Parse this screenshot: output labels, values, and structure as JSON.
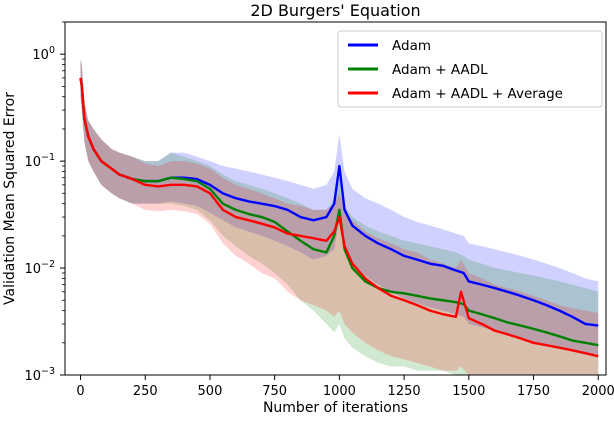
{
  "chart_data": {
    "type": "line",
    "title": "2D Burgers' Equation",
    "xlabel": "Number of iterations",
    "ylabel": "Validation Mean Squared Error",
    "xlim": [
      -60,
      2030
    ],
    "ylim": [
      0.001,
      2.0
    ],
    "yscale": "log",
    "xticks": [
      0,
      250,
      500,
      750,
      1000,
      1250,
      1500,
      1750,
      2000
    ],
    "xtick_labels": [
      "0",
      "250",
      "500",
      "750",
      "1000",
      "1250",
      "1500",
      "1750",
      "2000"
    ],
    "yticks": [
      1,
      0.1,
      0.01,
      0.001
    ],
    "ytick_base": "10",
    "ytick_exponents": [
      "0",
      "−1",
      "−2",
      "−3"
    ],
    "legend_position": "top-right",
    "series": [
      {
        "name": "Adam",
        "color": "#0000ff",
        "x": [
          0,
          5,
          15,
          30,
          50,
          80,
          120,
          150,
          200,
          250,
          300,
          350,
          400,
          450,
          500,
          550,
          600,
          650,
          700,
          750,
          800,
          850,
          900,
          950,
          980,
          1000,
          1020,
          1050,
          1100,
          1150,
          1200,
          1250,
          1300,
          1350,
          1400,
          1450,
          1480,
          1500,
          1550,
          1600,
          1650,
          1700,
          1750,
          1800,
          1850,
          1900,
          1950,
          2000
        ],
        "y": [
          0.6,
          0.5,
          0.25,
          0.17,
          0.13,
          0.1,
          0.085,
          0.075,
          0.068,
          0.065,
          0.065,
          0.07,
          0.07,
          0.068,
          0.06,
          0.05,
          0.045,
          0.042,
          0.04,
          0.038,
          0.035,
          0.03,
          0.028,
          0.03,
          0.04,
          0.09,
          0.035,
          0.025,
          0.02,
          0.017,
          0.015,
          0.013,
          0.012,
          0.011,
          0.0105,
          0.0095,
          0.009,
          0.0075,
          0.007,
          0.0065,
          0.006,
          0.0055,
          0.005,
          0.0045,
          0.004,
          0.0035,
          0.003,
          0.0029
        ],
        "band_lower": [
          0.4,
          0.3,
          0.15,
          0.1,
          0.08,
          0.06,
          0.05,
          0.045,
          0.04,
          0.04,
          0.04,
          0.042,
          0.04,
          0.038,
          0.033,
          0.028,
          0.024,
          0.022,
          0.02,
          0.018,
          0.016,
          0.014,
          0.012,
          0.013,
          0.015,
          0.028,
          0.016,
          0.011,
          0.0085,
          0.007,
          0.006,
          0.0052,
          0.0047,
          0.0043,
          0.004,
          0.0037,
          0.0035,
          0.003,
          0.0028,
          0.0026,
          0.0024,
          0.0022,
          0.002,
          0.0019,
          0.0018,
          0.0017,
          0.0016,
          0.0015
        ],
        "band_upper": [
          0.9,
          0.8,
          0.35,
          0.24,
          0.2,
          0.16,
          0.13,
          0.12,
          0.11,
          0.1,
          0.1,
          0.12,
          0.12,
          0.11,
          0.1,
          0.09,
          0.085,
          0.08,
          0.075,
          0.07,
          0.065,
          0.06,
          0.055,
          0.06,
          0.08,
          0.18,
          0.08,
          0.055,
          0.045,
          0.04,
          0.035,
          0.03,
          0.027,
          0.025,
          0.023,
          0.021,
          0.02,
          0.017,
          0.016,
          0.015,
          0.014,
          0.013,
          0.012,
          0.011,
          0.01,
          0.009,
          0.008,
          0.0075
        ]
      },
      {
        "name": "Adam + AADL",
        "color": "#008000",
        "x": [
          0,
          5,
          15,
          30,
          50,
          80,
          120,
          150,
          200,
          250,
          300,
          350,
          400,
          450,
          500,
          550,
          600,
          650,
          700,
          750,
          800,
          850,
          900,
          950,
          980,
          1000,
          1020,
          1050,
          1100,
          1150,
          1200,
          1250,
          1300,
          1350,
          1400,
          1450,
          1480,
          1500,
          1550,
          1600,
          1650,
          1700,
          1750,
          1800,
          1850,
          1900,
          1950,
          2000
        ],
        "y": [
          0.6,
          0.5,
          0.25,
          0.17,
          0.13,
          0.1,
          0.085,
          0.075,
          0.068,
          0.065,
          0.065,
          0.07,
          0.068,
          0.065,
          0.055,
          0.04,
          0.035,
          0.032,
          0.03,
          0.027,
          0.022,
          0.018,
          0.015,
          0.014,
          0.02,
          0.035,
          0.015,
          0.01,
          0.0075,
          0.0065,
          0.006,
          0.0058,
          0.0055,
          0.0052,
          0.005,
          0.0048,
          0.0046,
          0.004,
          0.0037,
          0.0034,
          0.0031,
          0.0029,
          0.0027,
          0.0025,
          0.0023,
          0.0021,
          0.002,
          0.0019
        ],
        "band_lower": [
          0.4,
          0.3,
          0.15,
          0.1,
          0.08,
          0.06,
          0.05,
          0.045,
          0.04,
          0.04,
          0.04,
          0.04,
          0.038,
          0.035,
          0.028,
          0.02,
          0.016,
          0.013,
          0.011,
          0.009,
          0.007,
          0.005,
          0.004,
          0.003,
          0.0025,
          0.003,
          0.0022,
          0.0018,
          0.0015,
          0.0013,
          0.0012,
          0.0012,
          0.0011,
          0.0011,
          0.0011,
          0.001,
          0.001,
          0.001,
          0.001,
          0.001,
          0.001,
          0.001,
          0.001,
          0.001,
          0.001,
          0.001,
          0.001,
          0.001
        ],
        "band_upper": [
          0.9,
          0.8,
          0.35,
          0.24,
          0.2,
          0.16,
          0.13,
          0.12,
          0.11,
          0.1,
          0.1,
          0.12,
          0.11,
          0.1,
          0.09,
          0.075,
          0.065,
          0.06,
          0.055,
          0.05,
          0.045,
          0.04,
          0.035,
          0.035,
          0.045,
          0.07,
          0.038,
          0.03,
          0.025,
          0.022,
          0.02,
          0.018,
          0.017,
          0.016,
          0.015,
          0.014,
          0.013,
          0.012,
          0.011,
          0.01,
          0.0095,
          0.009,
          0.0085,
          0.008,
          0.0075,
          0.007,
          0.0065,
          0.006
        ]
      },
      {
        "name": "Adam + AADL + Average",
        "color": "#ff0000",
        "x": [
          0,
          5,
          15,
          30,
          50,
          80,
          120,
          150,
          200,
          250,
          300,
          350,
          400,
          450,
          500,
          550,
          600,
          650,
          700,
          750,
          800,
          850,
          900,
          950,
          980,
          1000,
          1020,
          1050,
          1100,
          1150,
          1200,
          1250,
          1300,
          1350,
          1400,
          1450,
          1470,
          1500,
          1550,
          1600,
          1650,
          1700,
          1750,
          1800,
          1850,
          1900,
          1950,
          2000
        ],
        "y": [
          0.6,
          0.5,
          0.25,
          0.17,
          0.13,
          0.1,
          0.085,
          0.075,
          0.068,
          0.06,
          0.058,
          0.06,
          0.06,
          0.058,
          0.05,
          0.035,
          0.03,
          0.028,
          0.026,
          0.024,
          0.021,
          0.02,
          0.019,
          0.018,
          0.022,
          0.03,
          0.016,
          0.011,
          0.008,
          0.0065,
          0.0055,
          0.005,
          0.0045,
          0.004,
          0.0037,
          0.0035,
          0.006,
          0.0034,
          0.003,
          0.0026,
          0.0024,
          0.0022,
          0.002,
          0.0019,
          0.0018,
          0.0017,
          0.0016,
          0.0015
        ],
        "band_lower": [
          0.4,
          0.3,
          0.15,
          0.1,
          0.08,
          0.06,
          0.05,
          0.045,
          0.04,
          0.035,
          0.034,
          0.035,
          0.034,
          0.032,
          0.026,
          0.017,
          0.013,
          0.011,
          0.009,
          0.008,
          0.006,
          0.005,
          0.0045,
          0.004,
          0.0035,
          0.004,
          0.003,
          0.0025,
          0.002,
          0.0017,
          0.0015,
          0.0014,
          0.0013,
          0.0012,
          0.0011,
          0.0011,
          0.0012,
          0.001,
          0.001,
          0.001,
          0.001,
          0.001,
          0.001,
          0.001,
          0.001,
          0.001,
          0.001,
          0.001
        ],
        "band_upper": [
          0.9,
          0.8,
          0.35,
          0.24,
          0.2,
          0.16,
          0.13,
          0.12,
          0.11,
          0.095,
          0.09,
          0.1,
          0.1,
          0.095,
          0.085,
          0.07,
          0.06,
          0.055,
          0.05,
          0.045,
          0.04,
          0.038,
          0.035,
          0.035,
          0.04,
          0.05,
          0.035,
          0.028,
          0.022,
          0.019,
          0.017,
          0.015,
          0.014,
          0.012,
          0.011,
          0.01,
          0.012,
          0.009,
          0.008,
          0.007,
          0.0065,
          0.006,
          0.0055,
          0.005,
          0.0045,
          0.0042,
          0.004,
          0.0038
        ]
      }
    ]
  }
}
